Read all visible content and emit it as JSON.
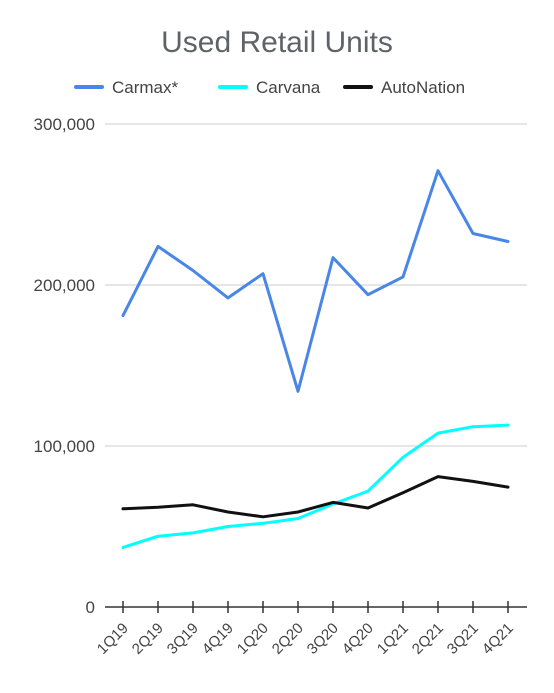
{
  "chart_data": {
    "type": "line",
    "title": "Used Retail Units",
    "xlabel": "",
    "ylabel": "",
    "categories": [
      "1Q19",
      "2Q19",
      "3Q19",
      "4Q19",
      "1Q20",
      "2Q20",
      "3Q20",
      "4Q20",
      "1Q21",
      "2Q21",
      "3Q21",
      "4Q21"
    ],
    "ylim": [
      0,
      300000
    ],
    "yticks": [
      0,
      100000,
      200000,
      300000
    ],
    "ytick_labels": [
      "0",
      "100,000",
      "200,000",
      "300,000"
    ],
    "grid": true,
    "legend_position": "top",
    "series": [
      {
        "name": "Carmax*",
        "color": "#4a86e8",
        "values": [
          181000,
          224000,
          209000,
          192000,
          207000,
          134000,
          217000,
          194000,
          205000,
          271000,
          232000,
          227000
        ]
      },
      {
        "name": "Carvana",
        "color": "#00ffff",
        "values": [
          37000,
          44000,
          46000,
          50000,
          52000,
          55000,
          64000,
          72000,
          93000,
          108000,
          112000,
          113000
        ]
      },
      {
        "name": "AutoNation",
        "color": "#111111",
        "values": [
          61000,
          62000,
          63500,
          59000,
          56000,
          59000,
          65000,
          61500,
          71000,
          81000,
          78000,
          74500
        ]
      }
    ]
  }
}
